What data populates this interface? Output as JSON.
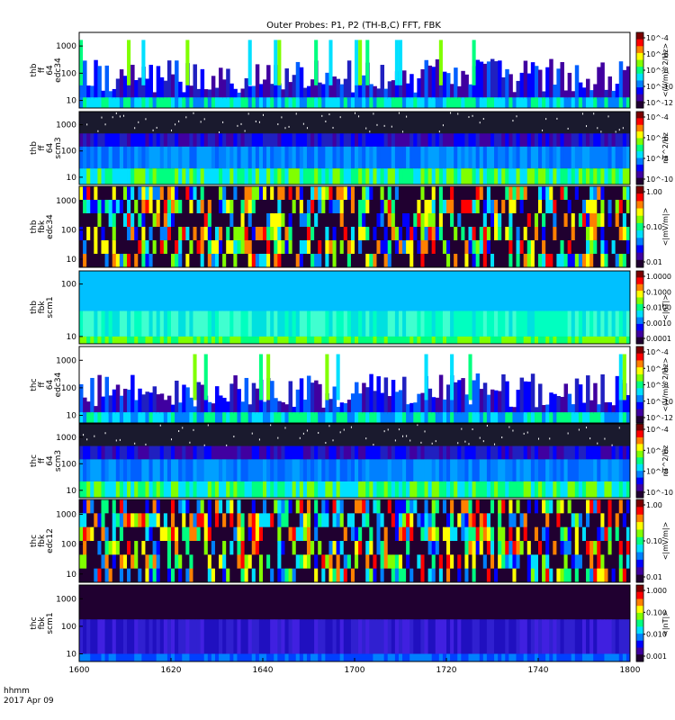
{
  "chart_data": {
    "type": "heatmap",
    "title": "Outer Probes: P1, P2 (TH-B,C) FFT, FBK",
    "x": {
      "ticks": [
        "1600",
        "1620",
        "1640",
        "1700",
        "1720",
        "1740",
        "1800"
      ],
      "label_line1": "hhmm",
      "label_line2": "2017 Apr 09"
    },
    "panels": [
      {
        "label": [
          "thb",
          "ff",
          "64",
          "edc34"
        ],
        "yticks": [
          "1000",
          "100",
          "10"
        ],
        "cb_label": "<(V/m)^2/Hz>",
        "cb_ticks": [
          "10^-4",
          "10^-6",
          "10^-8",
          "10^-10",
          "10^-12"
        ],
        "kind": "fft-e"
      },
      {
        "label": [
          "thb",
          "ff",
          "64",
          "scm3"
        ],
        "yticks": [
          "1000",
          "100",
          "10"
        ],
        "cb_label": "nT^2/Hz",
        "cb_ticks": [
          "10^-4",
          "10^-6",
          "10^-8",
          "10^-10"
        ],
        "kind": "fft-b"
      },
      {
        "label": [
          "thb",
          "fbk",
          "edc34"
        ],
        "yticks": [
          "1000",
          "100",
          "10"
        ],
        "cb_label": "<|mV/m|>",
        "cb_ticks": [
          "1.00",
          "0.10",
          "0.01"
        ],
        "kind": "fbk-e"
      },
      {
        "label": [
          "thb",
          "fbk",
          "scm1"
        ],
        "yticks": [
          "100",
          "10"
        ],
        "cb_label": "<|nT|>",
        "cb_ticks": [
          "1.0000",
          "0.1000",
          "0.0100",
          "0.0010",
          "0.0001"
        ],
        "kind": "fbk-b"
      },
      {
        "label": [
          "thc",
          "ff",
          "64",
          "edc34"
        ],
        "yticks": [
          "1000",
          "100",
          "10"
        ],
        "cb_label": "<(V/m)^2/Hz>",
        "cb_ticks": [
          "10^-4",
          "10^-6",
          "10^-8",
          "10^-10",
          "10^-12"
        ],
        "kind": "fft-e"
      },
      {
        "label": [
          "thc",
          "ff",
          "64",
          "scm3"
        ],
        "yticks": [
          "1000",
          "100",
          "10"
        ],
        "cb_label": "nT^2/Hz",
        "cb_ticks": [
          "10^-4",
          "10^-6",
          "10^-8",
          "10^-10"
        ],
        "kind": "fft-b"
      },
      {
        "label": [
          "thc",
          "fbk",
          "edc12"
        ],
        "yticks": [
          "1000",
          "100",
          "10"
        ],
        "cb_label": "<|mV/m|>",
        "cb_ticks": [
          "1.00",
          "0.10",
          "0.01"
        ],
        "kind": "fbk-e2"
      },
      {
        "label": [
          "thc",
          "fbk",
          "scm1"
        ],
        "yticks": [
          "1000",
          "100",
          "10"
        ],
        "cb_label": "<|nT|>",
        "cb_ticks": [
          "1.000",
          "0.100",
          "0.010",
          "0.001"
        ],
        "kind": "fbk-b2"
      }
    ],
    "colorscale": [
      "#7a0000",
      "#ff0000",
      "#ff8000",
      "#ffff00",
      "#80ff00",
      "#00ff80",
      "#00e0ff",
      "#0080ff",
      "#0000ff",
      "#4000a0",
      "#200030"
    ]
  }
}
